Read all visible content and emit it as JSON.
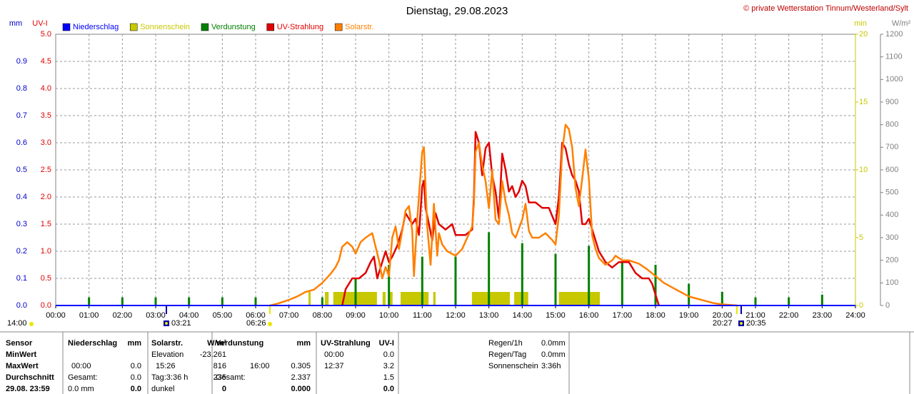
{
  "chart_data": {
    "type": "line",
    "title": "Dienstag, 29.08.2023",
    "credit": "© private Wetterstation Tinnum/Westerland/Sylt",
    "grid": true,
    "xlim": [
      0,
      24
    ],
    "xticks": [
      {
        "value": 0,
        "label": "00:00"
      },
      {
        "value": 1,
        "label": "01:00"
      },
      {
        "value": 2,
        "label": "02:00"
      },
      {
        "value": 3,
        "label": "03:00"
      },
      {
        "value": 4,
        "label": "04:00"
      },
      {
        "value": 5,
        "label": "05:00"
      },
      {
        "value": 6,
        "label": "06:00"
      },
      {
        "value": 7,
        "label": "07:00"
      },
      {
        "value": 8,
        "label": "08:00"
      },
      {
        "value": 9,
        "label": "09:00"
      },
      {
        "value": 10,
        "label": "10:00"
      },
      {
        "value": 11,
        "label": "11:00"
      },
      {
        "value": 12,
        "label": "12:00"
      },
      {
        "value": 13,
        "label": "13:00"
      },
      {
        "value": 14,
        "label": "14:00"
      },
      {
        "value": 15,
        "label": "15:00"
      },
      {
        "value": 16,
        "label": "16:00"
      },
      {
        "value": 17,
        "label": "17:00"
      },
      {
        "value": 18,
        "label": "18:00"
      },
      {
        "value": 19,
        "label": "19:00"
      },
      {
        "value": 20,
        "label": "20:00"
      },
      {
        "value": 21,
        "label": "21:00"
      },
      {
        "value": 22,
        "label": "22:00"
      },
      {
        "value": 23,
        "label": "23:00"
      },
      {
        "value": 24,
        "label": "24:00"
      }
    ],
    "axes": {
      "mm": {
        "label": "mm",
        "color": "#0000cc",
        "lim": [
          0,
          1
        ],
        "ticks": [
          {
            "value": 0,
            "label": "0.0"
          },
          0.1,
          0.2,
          0.3,
          0.4,
          0.5,
          0.6,
          0.7,
          0.8,
          0.9
        ]
      },
      "uv": {
        "label": "UV-I",
        "color": "#e00000",
        "lim": [
          0,
          5
        ],
        "ticks": [
          {
            "value": 0,
            "label": "0.0"
          },
          0.5,
          {
            "value": 1,
            "label": "1.0"
          },
          1.5,
          {
            "value": 2,
            "label": "2.0"
          },
          2.5,
          {
            "value": 3,
            "label": "3.0"
          },
          3.5,
          {
            "value": 4,
            "label": "4.0"
          },
          4.5,
          {
            "value": 5,
            "label": "5.0"
          }
        ]
      },
      "min": {
        "label": "min",
        "color": "#c8c800",
        "lim": [
          0,
          20
        ],
        "ticks": [
          0,
          5,
          10,
          15,
          20
        ]
      },
      "wm2": {
        "label": "W/m²",
        "color": "#808080",
        "lim": [
          0,
          1200
        ],
        "ticks": [
          0,
          100,
          200,
          300,
          400,
          500,
          600,
          700,
          800,
          900,
          1000,
          1100,
          1200
        ]
      }
    },
    "series": [
      {
        "name": "Niederschlag",
        "color": "#0000ff",
        "axis": "mm",
        "kind": "bar",
        "x": [],
        "values": []
      },
      {
        "name": "Sonnenschein",
        "color": "#c8c800",
        "axis": "min",
        "kind": "span",
        "x": [
          7.585,
          8.08,
          8.33,
          9.81,
          10.0,
          10.35,
          11.33,
          12.49,
          13.76,
          15.1
        ],
        "x_end": [
          7.65,
          8.19,
          9.64,
          9.9,
          10.11,
          11.19,
          11.4,
          13.63,
          14.18,
          16.33
        ],
        "values": [
          1,
          1,
          1,
          1,
          1,
          1,
          1,
          1,
          1,
          1
        ]
      },
      {
        "name": "Verdunstung",
        "color": "#008000",
        "axis": "mm",
        "kind": "bar",
        "x": [
          1,
          2,
          3,
          4,
          5,
          6,
          8,
          9,
          10,
          11,
          12,
          13,
          14,
          15,
          16,
          17,
          18,
          19,
          20,
          21,
          22,
          23
        ],
        "values": [
          0.03,
          0.03,
          0.03,
          0.03,
          0.03,
          0.03,
          0.03,
          0.1,
          0.15,
          0.18,
          0.18,
          0.27,
          0.23,
          0.19,
          0.22,
          0.16,
          0.15,
          0.08,
          0.05,
          0.03,
          0.03,
          0.04
        ]
      },
      {
        "name": "UV-Strahlung",
        "color": "#e00000",
        "axis": "uv",
        "kind": "line",
        "x": [
          8.6,
          8.7,
          8.9,
          9.1,
          9.3,
          9.45,
          9.55,
          9.65,
          9.8,
          9.9,
          10.0,
          10.1,
          10.25,
          10.4,
          10.5,
          10.6,
          10.7,
          10.8,
          10.9,
          11.0,
          11.05,
          11.1,
          11.2,
          11.3,
          11.4,
          11.5,
          11.7,
          11.9,
          12.0,
          12.3,
          12.5,
          12.55,
          12.6,
          12.7,
          12.8,
          12.9,
          13.0,
          13.1,
          13.2,
          13.3,
          13.4,
          13.5,
          13.6,
          13.7,
          13.8,
          13.9,
          14.0,
          14.1,
          14.2,
          14.4,
          14.6,
          14.8,
          15.0,
          15.1,
          15.2,
          15.3,
          15.4,
          15.5,
          15.6,
          15.7,
          15.8,
          15.9,
          16.0,
          16.1,
          16.2,
          16.3,
          16.5,
          16.7,
          16.9,
          17.0,
          17.2,
          17.4,
          17.6,
          17.8,
          17.9,
          18.0,
          18.1
        ],
        "values": [
          0,
          0.3,
          0.5,
          0.5,
          0.6,
          0.8,
          0.9,
          0.5,
          0.8,
          1.0,
          0.8,
          0.9,
          1.1,
          1.4,
          1.7,
          1.6,
          1.5,
          1.6,
          1.3,
          2.2,
          2.3,
          1.8,
          1.5,
          1.2,
          1.7,
          1.5,
          1.4,
          1.5,
          1.3,
          1.3,
          1.4,
          2.0,
          3.2,
          3.0,
          2.4,
          2.9,
          3.0,
          2.4,
          2.1,
          1.6,
          2.8,
          2.5,
          2.1,
          2.2,
          2.0,
          2.1,
          2.3,
          2.2,
          1.9,
          1.9,
          1.8,
          1.8,
          1.5,
          2.0,
          3.0,
          2.9,
          2.6,
          2.4,
          2.3,
          2.1,
          1.5,
          1.5,
          1.6,
          1.4,
          1.2,
          1.0,
          0.8,
          0.7,
          0.8,
          0.8,
          0.8,
          0.6,
          0.5,
          0.5,
          0.4,
          0.2,
          0
        ]
      },
      {
        "name": "Solarstr.",
        "color": "#ff8000",
        "axis": "wm2",
        "kind": "line",
        "x": [
          6.43,
          6.7,
          7.0,
          7.25,
          7.5,
          7.75,
          8.0,
          8.25,
          8.4,
          8.5,
          8.6,
          8.75,
          8.9,
          9.0,
          9.15,
          9.3,
          9.5,
          9.6,
          9.7,
          9.8,
          9.9,
          10.0,
          10.1,
          10.2,
          10.3,
          10.4,
          10.5,
          10.6,
          10.7,
          10.75,
          10.85,
          11.0,
          11.05,
          11.15,
          11.25,
          11.35,
          11.45,
          11.5,
          11.6,
          11.75,
          12.0,
          12.2,
          12.35,
          12.5,
          12.55,
          12.6,
          12.7,
          12.8,
          12.9,
          13.0,
          13.1,
          13.2,
          13.3,
          13.4,
          13.5,
          13.6,
          13.7,
          13.8,
          14.0,
          14.1,
          14.2,
          14.3,
          14.5,
          14.7,
          14.9,
          15.0,
          15.1,
          15.2,
          15.3,
          15.4,
          15.5,
          15.6,
          15.7,
          15.8,
          15.9,
          16.0,
          16.1,
          16.2,
          16.3,
          16.5,
          16.7,
          16.8,
          17.0,
          17.2,
          17.5,
          17.75,
          18.0,
          18.25,
          18.5,
          18.75,
          19.0,
          19.25,
          19.5,
          19.75,
          20.0,
          20.45
        ],
        "values": [
          0,
          10,
          25,
          40,
          60,
          70,
          100,
          140,
          170,
          200,
          260,
          280,
          260,
          230,
          280,
          300,
          320,
          260,
          200,
          120,
          170,
          130,
          300,
          350,
          250,
          330,
          420,
          440,
          330,
          130,
          380,
          680,
          700,
          350,
          180,
          450,
          220,
          320,
          270,
          240,
          220,
          250,
          300,
          350,
          450,
          680,
          720,
          620,
          550,
          430,
          600,
          380,
          360,
          550,
          460,
          400,
          320,
          300,
          380,
          450,
          330,
          300,
          300,
          320,
          290,
          270,
          400,
          680,
          800,
          780,
          700,
          520,
          440,
          560,
          690,
          560,
          310,
          250,
          210,
          180,
          200,
          220,
          200,
          200,
          185,
          160,
          130,
          100,
          80,
          60,
          40,
          30,
          20,
          10,
          5,
          0
        ]
      }
    ],
    "annotations": [
      "14:00",
      "03:21",
      "06:26",
      "20:27",
      "20:35"
    ]
  },
  "stats": {
    "rows": [
      [
        "Sensor",
        "Niederschlag",
        "mm",
        "Solarstr.",
        "W/m²",
        "Verdunstung",
        "mm",
        "UV-Strahlung",
        "UV-I"
      ],
      [
        "MinWert",
        null,
        null,
        "Elevation",
        "-23.261",
        null,
        null,
        "00:00",
        "0.0"
      ],
      [
        "MaxWert",
        "00:00",
        "0.0",
        "15:26",
        "816",
        "16:00",
        "0.305",
        "12:37",
        "3.2"
      ],
      [
        "Durchschnitt",
        "Gesamt:",
        "0.0",
        "Tag:3:36 h",
        "235",
        "Gesamt:",
        "2.337",
        null,
        "1.5"
      ],
      [
        "29.08. 23:59",
        "0.0 mm",
        "0.0",
        "dunkel",
        "0",
        null,
        "0.000",
        null,
        "0.0"
      ]
    ]
  },
  "summary": [
    [
      "Regen/1h",
      "0.0mm"
    ],
    [
      "Regen/Tag",
      "0.0mm"
    ],
    [
      "Sonnenschein",
      "3:36h"
    ]
  ]
}
